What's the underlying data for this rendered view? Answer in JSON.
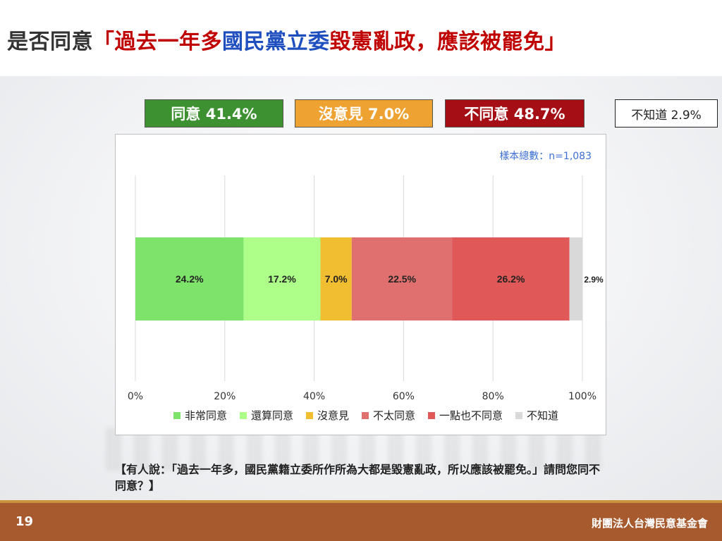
{
  "title": {
    "prefix": "是否同意",
    "quote_open": "「過去一年多",
    "party": "國民黨立委",
    "quote_rest": "毀憲亂政，應該被罷免」"
  },
  "summary": {
    "agree": "同意 41.4%",
    "neutral": "沒意見 7.0%",
    "disagree": "不同意 48.7%",
    "unknown": "不知道 2.9%"
  },
  "sample_size": "樣本總數：n=1,083",
  "chart_data": {
    "type": "bar",
    "orientation": "horizontal",
    "stacked": true,
    "xlim": [
      0,
      100
    ],
    "x_ticks": [
      "0%",
      "20%",
      "40%",
      "60%",
      "80%",
      "100%"
    ],
    "grid": true,
    "legend_position": "bottom",
    "series": [
      {
        "name": "非常同意",
        "value": 24.2,
        "label": "24.2%",
        "color": "#7ee36b"
      },
      {
        "name": "還算同意",
        "value": 17.2,
        "label": "17.2%",
        "color": "#adff8a"
      },
      {
        "name": "沒意見",
        "value": 7.0,
        "label": "7.0%",
        "color": "#f0be30"
      },
      {
        "name": "不太同意",
        "value": 22.5,
        "label": "22.5%",
        "color": "#e07070"
      },
      {
        "name": "一點也不同意",
        "value": 26.2,
        "label": "26.2%",
        "color": "#e05858"
      },
      {
        "name": "不知道",
        "value": 2.9,
        "label": "2.9%",
        "color": "#d9d9d9"
      }
    ]
  },
  "question": "【有人說：「過去一年多，國民黨籍立委所作所為大都是毀憲亂政，所以應該被罷免。」請問您同不同意？】",
  "footer": {
    "page": "19",
    "org": "財團法人台灣民意基金會"
  }
}
